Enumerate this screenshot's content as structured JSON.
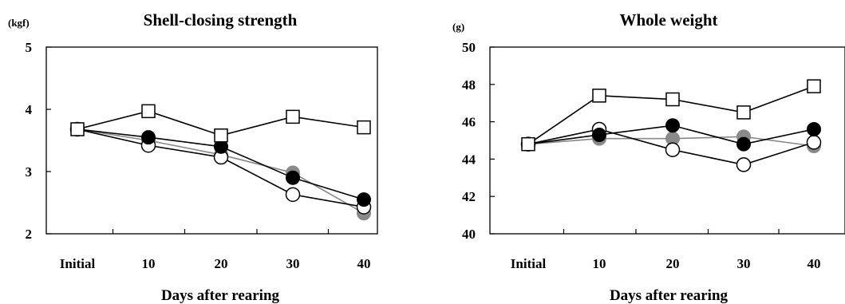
{
  "chart_data": [
    {
      "type": "line",
      "title": "Shell-closing strength",
      "unit": "(kgf)",
      "xlabel": "Days after rearing",
      "ylabel": "",
      "categories": [
        "Initial",
        "10",
        "20",
        "30",
        "40"
      ],
      "ylim": [
        2,
        5
      ],
      "yticks": [
        "2",
        "3",
        "4",
        "5"
      ],
      "grid": false,
      "series": [
        {
          "marker": "open-square",
          "line_color": "#000000",
          "values": [
            3.68,
            3.97,
            3.58,
            3.88,
            3.71
          ]
        },
        {
          "marker": "filled-black-circle",
          "line_color": "#000000",
          "values": [
            3.68,
            3.55,
            3.4,
            2.9,
            2.55
          ]
        },
        {
          "marker": "filled-gray-circle",
          "line_color": "#888888",
          "values": [
            3.68,
            3.5,
            3.27,
            2.98,
            2.33
          ]
        },
        {
          "marker": "open-circle",
          "line_color": "#000000",
          "values": [
            3.68,
            3.42,
            3.23,
            2.63,
            2.43
          ]
        }
      ]
    },
    {
      "type": "line",
      "title": "Whole weight",
      "unit": "(g)",
      "xlabel": "Days after rearing",
      "ylabel": "",
      "categories": [
        "Initial",
        "10",
        "20",
        "30",
        "40"
      ],
      "ylim": [
        40,
        50
      ],
      "yticks": [
        "40",
        "42",
        "44",
        "46",
        "48",
        "50"
      ],
      "grid": false,
      "series": [
        {
          "marker": "open-square",
          "line_color": "#000000",
          "values": [
            44.8,
            47.4,
            47.2,
            46.5,
            47.9
          ]
        },
        {
          "marker": "filled-black-circle",
          "line_color": "#000000",
          "values": [
            44.8,
            45.3,
            45.8,
            44.8,
            45.6
          ]
        },
        {
          "marker": "filled-gray-circle",
          "line_color": "#888888",
          "values": [
            44.8,
            45.1,
            45.1,
            45.2,
            44.7
          ]
        },
        {
          "marker": "open-circle",
          "line_color": "#000000",
          "values": [
            44.8,
            45.6,
            44.5,
            43.7,
            44.9
          ]
        }
      ]
    }
  ]
}
